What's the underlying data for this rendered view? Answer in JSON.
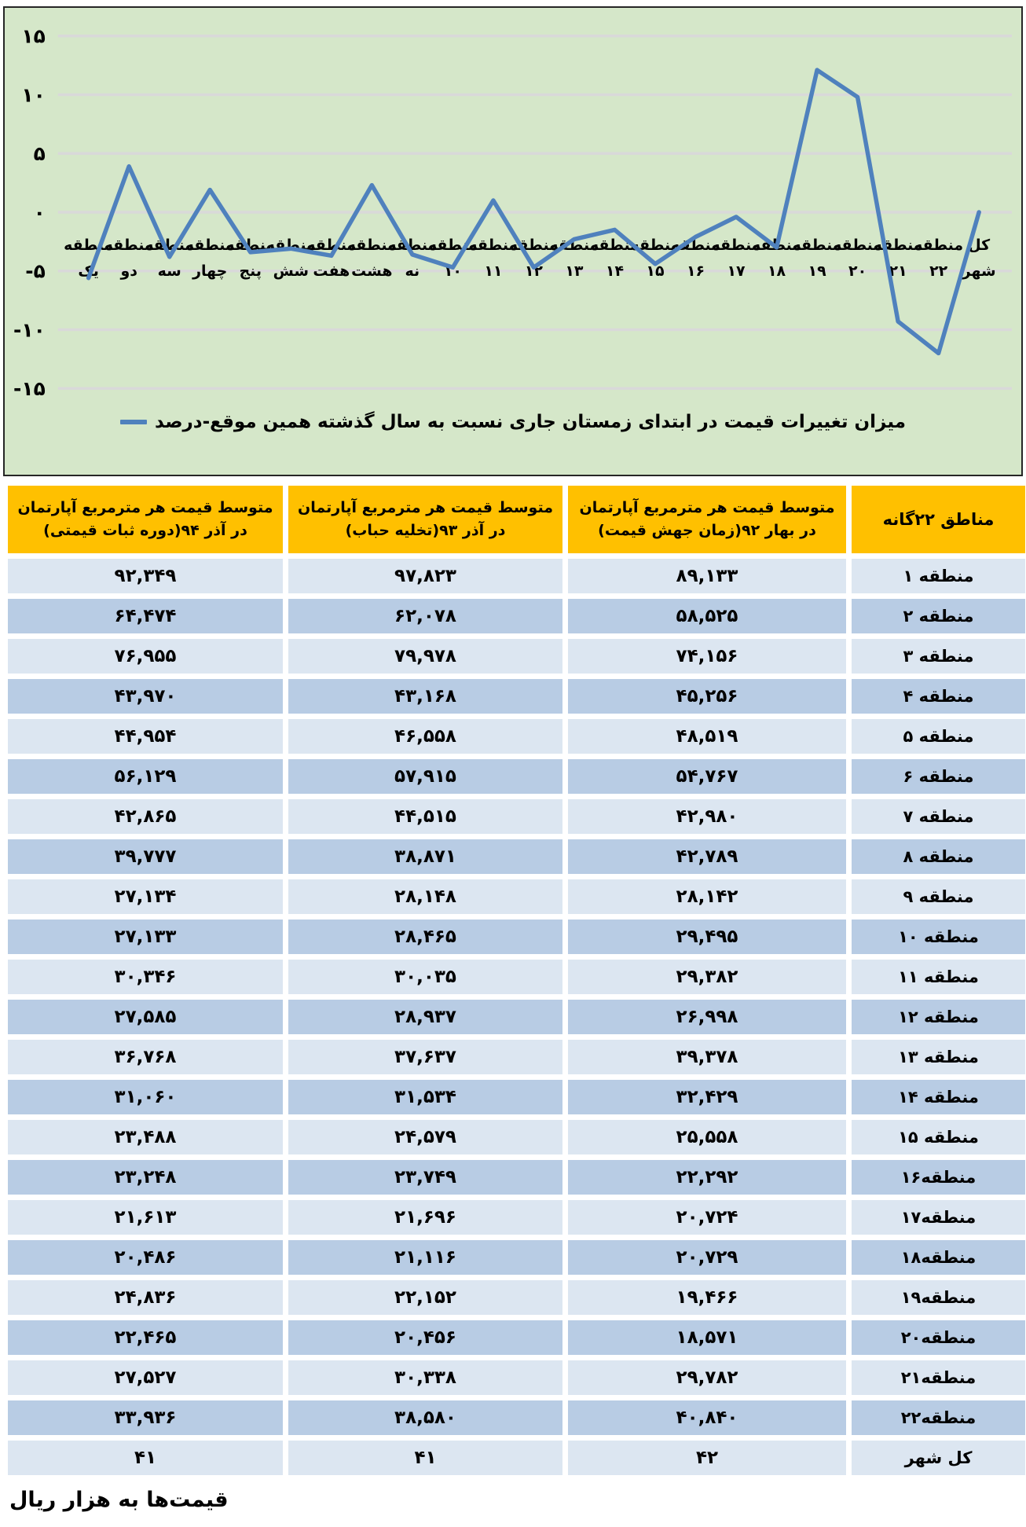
{
  "chart": {
    "background": "#d5e7c9",
    "gridline_color": "#d9d9d9",
    "line_color": "#4f81bd",
    "border_color": "#262626"
  },
  "chart_data": {
    "type": "line",
    "title": "",
    "xlabel": "",
    "ylabel": "",
    "grid": true,
    "legend": "میزان تغییرات قیمت در ابتدای زمستان جاری نسبت به سال گذشته همین موقع-درصد",
    "legend_position": "bottom-center",
    "ylim": [
      -15,
      15
    ],
    "y_ticks": [
      "۱۵",
      "۱۰",
      "۵",
      "۰",
      "-۵",
      "-۱۰",
      "-۱۵"
    ],
    "y_tick_values": [
      15,
      10,
      5,
      0,
      -5,
      -10,
      -15
    ],
    "categories_line1": [
      "منطقه",
      "منطقه",
      "منطقه",
      "منطقه",
      "منطقه",
      "منطقه",
      "منطقه",
      "منطقه",
      "منطقه",
      "منطقه",
      "منطقه",
      "منطقه",
      "منطقه",
      "منطقه",
      "منطقه",
      "منطقه",
      "منطقه",
      "منطقه",
      "منطقه",
      "منطقه",
      "منطقه",
      "منطقه",
      "کل"
    ],
    "categories_line2": [
      "یک",
      "دو",
      "سه",
      "چهار",
      "پنج",
      "شش",
      "هفت",
      "هشت",
      "نه",
      "۱۰",
      "۱۱",
      "۱۲",
      "۱۳",
      "۱۴",
      "۱۵",
      "۱۶",
      "۱۷",
      "۱۸",
      "۱۹",
      "۲۰",
      "۲۱",
      "۲۲",
      "شهر"
    ],
    "series": [
      {
        "name": "میزان تغییرات قیمت در ابتدای زمستان جاری نسبت به سال گذشته همین موقع-درصد",
        "values": [
          -5.6,
          3.9,
          -3.8,
          1.9,
          -3.4,
          -3.1,
          -3.7,
          2.3,
          -3.6,
          -4.7,
          1.0,
          -4.7,
          -2.3,
          -1.5,
          -4.4,
          -2.1,
          -0.4,
          -3.0,
          12.1,
          9.8,
          -9.3,
          -12.0,
          0.0
        ]
      }
    ]
  },
  "table": {
    "headers": [
      {
        "line1": "مناطق ۲۲گانه",
        "line2": ""
      },
      {
        "line1": "متوسط قیمت هر مترمربع آپارتمان",
        "line2": "در بهار ۹۲(زمان جهش قیمت)"
      },
      {
        "line1": "متوسط قیمت هر مترمربع آپارتمان",
        "line2": "در آذر ۹۳(تخلیه حباب)"
      },
      {
        "line1": "متوسط قیمت هر مترمربع آپارتمان",
        "line2": "در آذر ۹۴(دوره ثبات قیمتی)"
      }
    ],
    "rows": [
      {
        "region": "منطقه ۱",
        "spring92": "۸۹,۱۳۳",
        "azar93": "۹۷,۸۲۳",
        "azar94": "۹۲,۳۴۹"
      },
      {
        "region": "منطقه ۲",
        "spring92": "۵۸,۵۲۵",
        "azar93": "۶۲,۰۷۸",
        "azar94": "۶۴,۴۷۴"
      },
      {
        "region": "منطقه ۳",
        "spring92": "۷۴,۱۵۶",
        "azar93": "۷۹,۹۷۸",
        "azar94": "۷۶,۹۵۵"
      },
      {
        "region": "منطقه ۴",
        "spring92": "۴۵,۲۵۶",
        "azar93": "۴۳,۱۶۸",
        "azar94": "۴۳,۹۷۰"
      },
      {
        "region": "منطقه ۵",
        "spring92": "۴۸,۵۱۹",
        "azar93": "۴۶,۵۵۸",
        "azar94": "۴۴,۹۵۴"
      },
      {
        "region": "منطقه ۶",
        "spring92": "۵۴,۷۶۷",
        "azar93": "۵۷,۹۱۵",
        "azar94": "۵۶,۱۲۹"
      },
      {
        "region": "منطقه ۷",
        "spring92": "۴۲,۹۸۰",
        "azar93": "۴۴,۵۱۵",
        "azar94": "۴۲,۸۶۵"
      },
      {
        "region": "منطقه ۸",
        "spring92": "۴۲,۷۸۹",
        "azar93": "۳۸,۸۷۱",
        "azar94": "۳۹,۷۷۷"
      },
      {
        "region": "منطقه ۹",
        "spring92": "۲۸,۱۴۲",
        "azar93": "۲۸,۱۴۸",
        "azar94": "۲۷,۱۳۴"
      },
      {
        "region": "منطقه ۱۰",
        "spring92": "۲۹,۴۹۵",
        "azar93": "۲۸,۴۶۵",
        "azar94": "۲۷,۱۳۳"
      },
      {
        "region": "منطقه ۱۱",
        "spring92": "۲۹,۳۸۲",
        "azar93": "۳۰,۰۳۵",
        "azar94": "۳۰,۳۴۶"
      },
      {
        "region": "منطقه ۱۲",
        "spring92": "۲۶,۹۹۸",
        "azar93": "۲۸,۹۳۷",
        "azar94": "۲۷,۵۸۵"
      },
      {
        "region": "منطقه ۱۳",
        "spring92": "۳۹,۳۷۸",
        "azar93": "۳۷,۶۳۷",
        "azar94": "۳۶,۷۶۸"
      },
      {
        "region": "منطقه ۱۴",
        "spring92": "۳۲,۴۲۹",
        "azar93": "۳۱,۵۳۴",
        "azar94": "۳۱,۰۶۰"
      },
      {
        "region": "منطقه ۱۵",
        "spring92": "۲۵,۵۵۸",
        "azar93": "۲۴,۵۷۹",
        "azar94": "۲۳,۴۸۸"
      },
      {
        "region": "منطقه۱۶",
        "spring92": "۲۲,۲۹۲",
        "azar93": "۲۳,۷۴۹",
        "azar94": "۲۳,۲۴۸"
      },
      {
        "region": "منطقه۱۷",
        "spring92": "۲۰,۷۲۴",
        "azar93": "۲۱,۶۹۶",
        "azar94": "۲۱,۶۱۳"
      },
      {
        "region": "منطقه۱۸",
        "spring92": "۲۰,۷۲۹",
        "azar93": "۲۱,۱۱۶",
        "azar94": "۲۰,۴۸۶"
      },
      {
        "region": "منطقه۱۹",
        "spring92": "۱۹,۴۶۶",
        "azar93": "۲۲,۱۵۲",
        "azar94": "۲۴,۸۳۶"
      },
      {
        "region": "منطقه۲۰",
        "spring92": "۱۸,۵۷۱",
        "azar93": "۲۰,۴۵۶",
        "azar94": "۲۲,۴۶۵"
      },
      {
        "region": "منطقه۲۱",
        "spring92": "۲۹,۷۸۲",
        "azar93": "۳۰,۳۳۸",
        "azar94": "۲۷,۵۲۷"
      },
      {
        "region": "منطقه۲۲",
        "spring92": "۴۰,۸۴۰",
        "azar93": "۳۸,۵۸۰",
        "azar94": "۳۳,۹۳۶"
      },
      {
        "region": "کل شهر",
        "spring92": "۴۲",
        "azar93": "۴۱",
        "azar94": "۴۱"
      }
    ]
  },
  "caption": "قیمت‌ها به هزار ریال",
  "colors": {
    "header_bg": "#ffc000",
    "row_light": "#dce6f1",
    "row_dark": "#b8cce4"
  }
}
